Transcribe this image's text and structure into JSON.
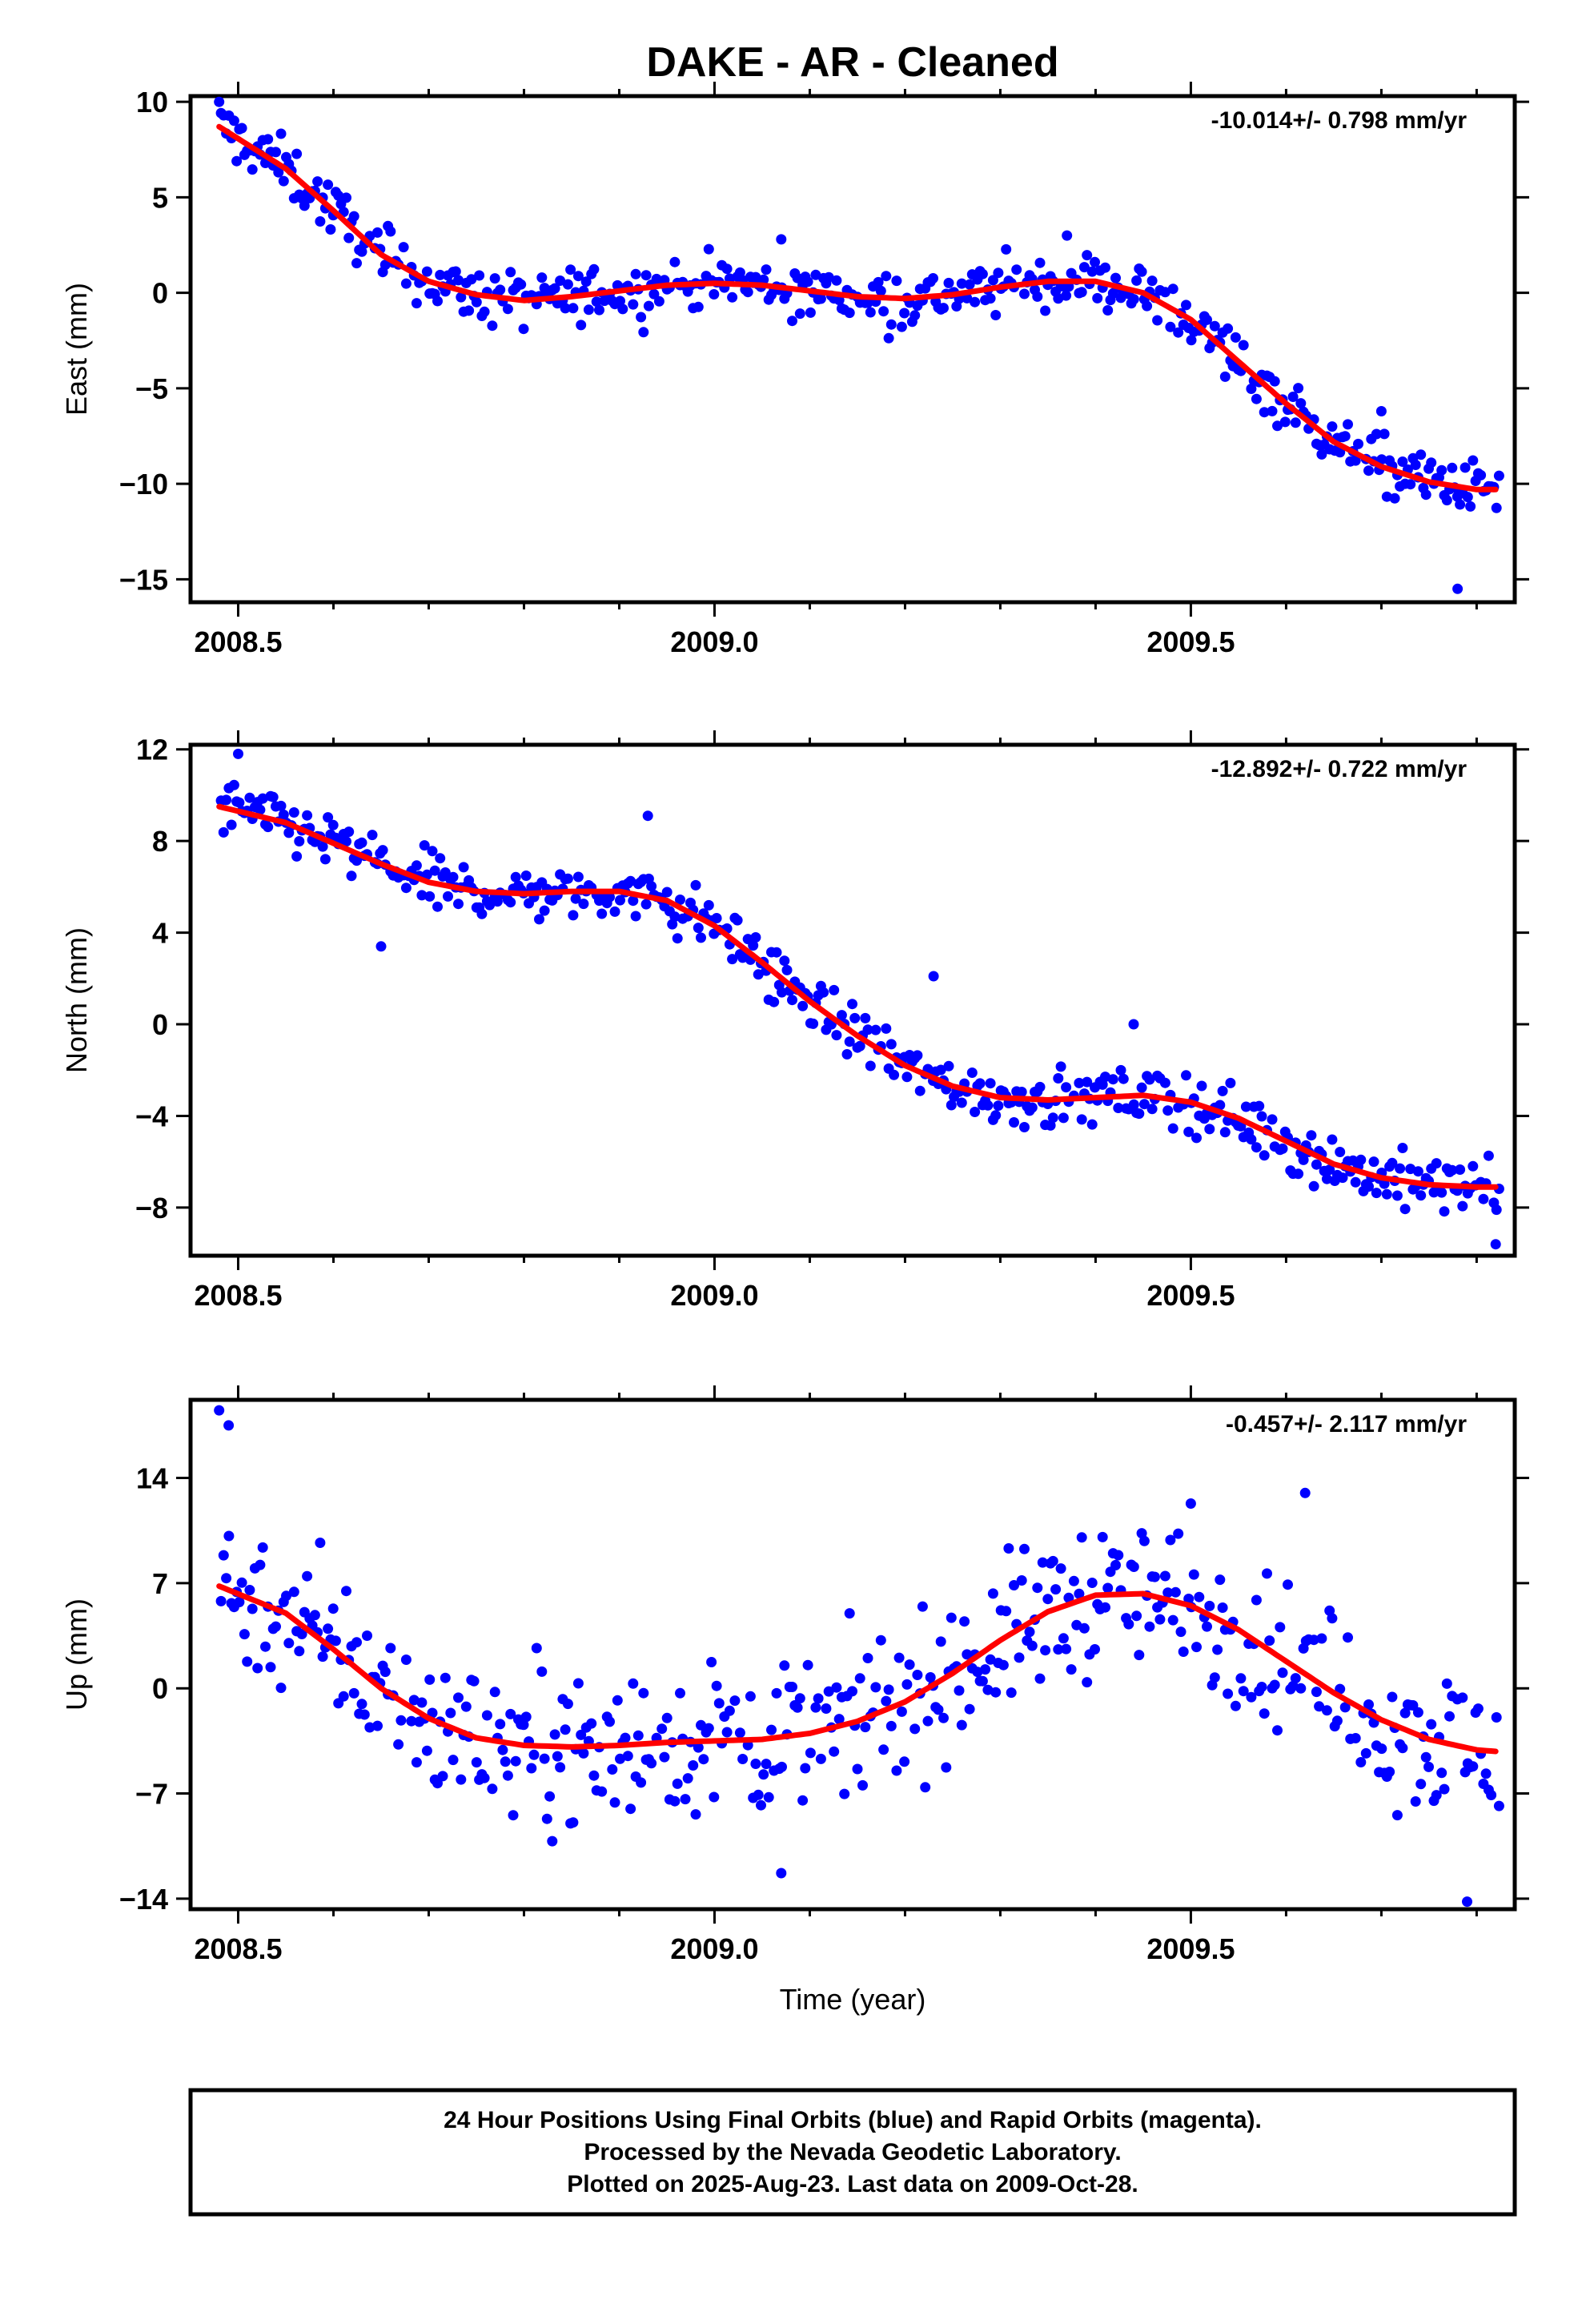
{
  "title": "DAKE  - AR - Cleaned",
  "colors": {
    "data": "#0000ff",
    "fit": "#ff0000",
    "frame": "#000000"
  },
  "chart_data": [
    {
      "type": "scatter",
      "ylabel": "East (mm)",
      "xlabel": "",
      "rate_label": "-10.014+/- 0.798 mm/yr",
      "xlim": [
        2008.45,
        2009.84
      ],
      "ylim": [
        -16.2,
        10.3
      ],
      "x_ticks": [
        2008.5,
        2009.0,
        2009.5
      ],
      "x_tick_labels": [
        "2008.5",
        "2009.0",
        "2009.5"
      ],
      "y_ticks": [
        10,
        5,
        0,
        -5,
        -10,
        -15
      ],
      "y_tick_labels": [
        "10",
        "5",
        "0",
        "−5",
        "−10",
        "−15"
      ],
      "fit": {
        "x": [
          2008.48,
          2008.55,
          2008.6,
          2008.65,
          2008.7,
          2008.75,
          2008.8,
          2008.85,
          2008.9,
          2008.95,
          2009.0,
          2009.05,
          2009.1,
          2009.15,
          2009.2,
          2009.25,
          2009.3,
          2009.35,
          2009.4,
          2009.45,
          2009.5,
          2009.55,
          2009.6,
          2009.65,
          2009.7,
          2009.75,
          2009.8,
          2009.82
        ],
        "y": [
          8.7,
          6.5,
          4.3,
          2.0,
          0.6,
          -0.1,
          -0.4,
          -0.2,
          0.1,
          0.4,
          0.5,
          0.4,
          0.1,
          -0.2,
          -0.3,
          -0.1,
          0.3,
          0.6,
          0.6,
          0.0,
          -1.4,
          -3.6,
          -5.8,
          -7.8,
          -9.1,
          -9.9,
          -10.3,
          -10.3
        ]
      },
      "noise": 1.05,
      "outliers": [
        [
          2008.48,
          10.0
        ],
        [
          2009.78,
          -15.5
        ],
        [
          2009.7,
          -6.2
        ],
        [
          2009.37,
          3.0
        ],
        [
          2009.07,
          2.8
        ]
      ]
    },
    {
      "type": "scatter",
      "ylabel": "North (mm)",
      "xlabel": "",
      "rate_label": "-12.892+/- 0.722 mm/yr",
      "xlim": [
        2008.45,
        2009.84
      ],
      "ylim": [
        -10.1,
        12.2
      ],
      "x_ticks": [
        2008.5,
        2009.0,
        2009.5
      ],
      "x_tick_labels": [
        "2008.5",
        "2009.0",
        "2009.5"
      ],
      "y_ticks": [
        12,
        8,
        4,
        0,
        -4,
        -8
      ],
      "y_tick_labels": [
        "12",
        "8",
        "4",
        "0",
        "−4",
        "−8"
      ],
      "fit": {
        "x": [
          2008.48,
          2008.55,
          2008.6,
          2008.65,
          2008.7,
          2008.75,
          2008.8,
          2008.85,
          2008.9,
          2008.95,
          2009.0,
          2009.05,
          2009.1,
          2009.15,
          2009.2,
          2009.25,
          2009.3,
          2009.35,
          2009.4,
          2009.45,
          2009.5,
          2009.55,
          2009.6,
          2009.65,
          2009.7,
          2009.75,
          2009.8,
          2009.82
        ],
        "y": [
          9.5,
          8.8,
          7.9,
          7.0,
          6.2,
          5.8,
          5.7,
          5.8,
          5.8,
          5.4,
          4.3,
          2.7,
          1.0,
          -0.5,
          -1.8,
          -2.7,
          -3.2,
          -3.3,
          -3.2,
          -3.1,
          -3.4,
          -4.1,
          -5.1,
          -6.1,
          -6.7,
          -7.0,
          -7.1,
          -7.1
        ]
      },
      "noise": 0.9,
      "outliers": [
        [
          2008.5,
          11.8
        ],
        [
          2008.93,
          9.1
        ],
        [
          2009.23,
          2.1
        ],
        [
          2009.44,
          0.0
        ],
        [
          2009.82,
          -9.6
        ],
        [
          2008.65,
          3.4
        ]
      ]
    },
    {
      "type": "scatter",
      "ylabel": "Up (mm)",
      "xlabel": "Time (year)",
      "rate_label": "-0.457+/- 2.117 mm/yr",
      "xlim": [
        2008.45,
        2009.84
      ],
      "ylim": [
        -14.7,
        19.2
      ],
      "x_ticks": [
        2008.5,
        2009.0,
        2009.5
      ],
      "x_tick_labels": [
        "2008.5",
        "2009.0",
        "2009.5"
      ],
      "y_ticks": [
        14,
        7,
        0,
        -7,
        -14
      ],
      "y_tick_labels": [
        "14",
        "7",
        "0",
        "−7",
        "−14"
      ],
      "fit": {
        "x": [
          2008.48,
          2008.55,
          2008.6,
          2008.65,
          2008.7,
          2008.75,
          2008.8,
          2008.85,
          2008.9,
          2008.95,
          2009.0,
          2009.05,
          2009.1,
          2009.15,
          2009.2,
          2009.25,
          2009.3,
          2009.35,
          2009.4,
          2009.45,
          2009.5,
          2009.55,
          2009.6,
          2009.65,
          2009.7,
          2009.75,
          2009.8,
          2009.82
        ],
        "y": [
          6.8,
          5.0,
          2.6,
          0.0,
          -2.0,
          -3.3,
          -3.8,
          -3.9,
          -3.8,
          -3.6,
          -3.5,
          -3.4,
          -3.0,
          -2.2,
          -0.9,
          1.0,
          3.2,
          5.1,
          6.2,
          6.3,
          5.5,
          3.9,
          1.8,
          -0.3,
          -2.1,
          -3.4,
          -4.1,
          -4.2
        ]
      },
      "noise": 3.6,
      "outliers": [
        [
          2008.48,
          18.5
        ],
        [
          2008.49,
          17.5
        ],
        [
          2009.79,
          -14.2
        ],
        [
          2009.07,
          -12.3
        ],
        [
          2009.62,
          13.0
        ],
        [
          2009.5,
          12.3
        ]
      ]
    }
  ],
  "footer": {
    "line1": "24 Hour Positions Using Final Orbits (blue) and Rapid Orbits (magenta).",
    "line2": "Processed by the Nevada Geodetic Laboratory.",
    "line3": "Plotted on 2025-Aug-23. Last data on 2009-Oct-28."
  }
}
